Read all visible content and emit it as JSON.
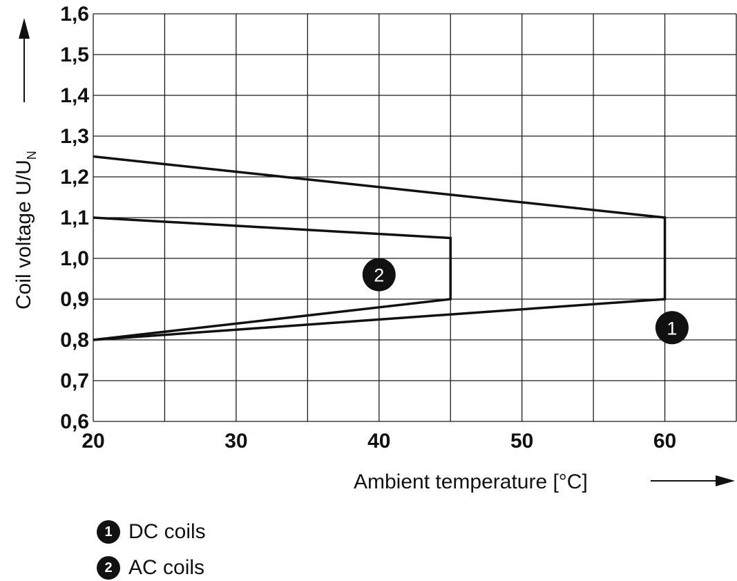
{
  "chart_data": {
    "type": "line",
    "xlabel": "Ambient temperature [°C]",
    "ylabel": "Coil voltage U/U",
    "ylabel_subscript": "N",
    "xlim": [
      20,
      65
    ],
    "ylim": [
      0.6,
      1.6
    ],
    "x_ticks": [
      20,
      30,
      40,
      50,
      60
    ],
    "x_tick_labels": [
      "20",
      "30",
      "40",
      "50",
      "60"
    ],
    "x_grid_step": 5,
    "y_ticks": [
      0.6,
      0.7,
      0.8,
      0.9,
      1.0,
      1.1,
      1.2,
      1.3,
      1.4,
      1.5,
      1.6
    ],
    "y_tick_labels": [
      "0,6",
      "0,7",
      "0,8",
      "0,9",
      "1,0",
      "1,1",
      "1,2",
      "1,3",
      "1,4",
      "1,5",
      "1,6"
    ],
    "grid": true,
    "series": [
      {
        "marker": "1",
        "points": [
          [
            20,
            1.25
          ],
          [
            60,
            1.1
          ],
          [
            60,
            0.9
          ],
          [
            20,
            0.8
          ]
        ],
        "badge_at": [
          60.5,
          0.83
        ]
      },
      {
        "marker": "2",
        "points": [
          [
            20,
            1.1
          ],
          [
            45,
            1.05
          ],
          [
            45,
            0.9
          ],
          [
            20,
            0.8
          ]
        ],
        "badge_at": [
          40,
          0.96
        ]
      }
    ],
    "legend": [
      {
        "marker": "1",
        "label": "DC coils"
      },
      {
        "marker": "2",
        "label": "AC coils"
      }
    ],
    "legend_position": "bottom-left"
  }
}
